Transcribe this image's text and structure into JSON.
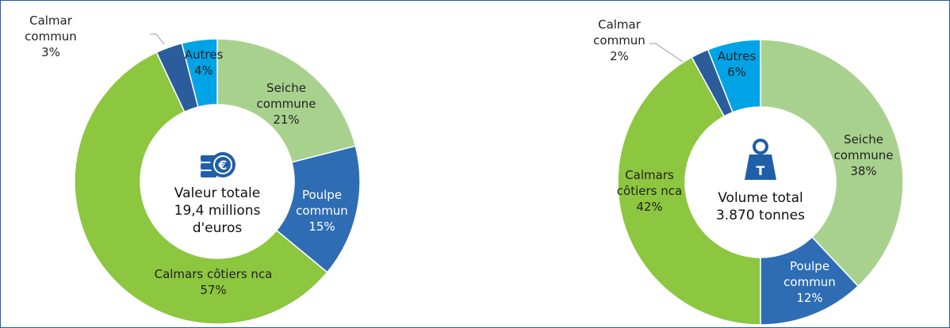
{
  "chart_data": [
    {
      "type": "donut",
      "center_label": "Valeur totale 19,4 millions d'euros",
      "categories": [
        "Seiche commune",
        "Poulpe commun",
        "Calmars côtiers nca",
        "Calmar commun",
        "Autres"
      ],
      "values": [
        21,
        15,
        57,
        3,
        4
      ],
      "value_labels": [
        "21%",
        "15%",
        "57%",
        "3%",
        "4%"
      ],
      "colors": [
        "#a9d18e",
        "#2e6db4",
        "#8dc63f",
        "#2b5c9c",
        "#00a3e6"
      ]
    },
    {
      "type": "donut",
      "center_label": "Volume total 3.870 tonnes",
      "categories": [
        "Seiche commune",
        "Poulpe commun",
        "Calmars côtiers nca",
        "Calmar commun",
        "Autres"
      ],
      "values": [
        38,
        12,
        42,
        2,
        6
      ],
      "value_labels": [
        "38%",
        "12%",
        "42%",
        "2%",
        "6%"
      ],
      "colors": [
        "#a9d18e",
        "#2e6db4",
        "#8dc63f",
        "#2b5c9c",
        "#00a3e6"
      ]
    }
  ]
}
